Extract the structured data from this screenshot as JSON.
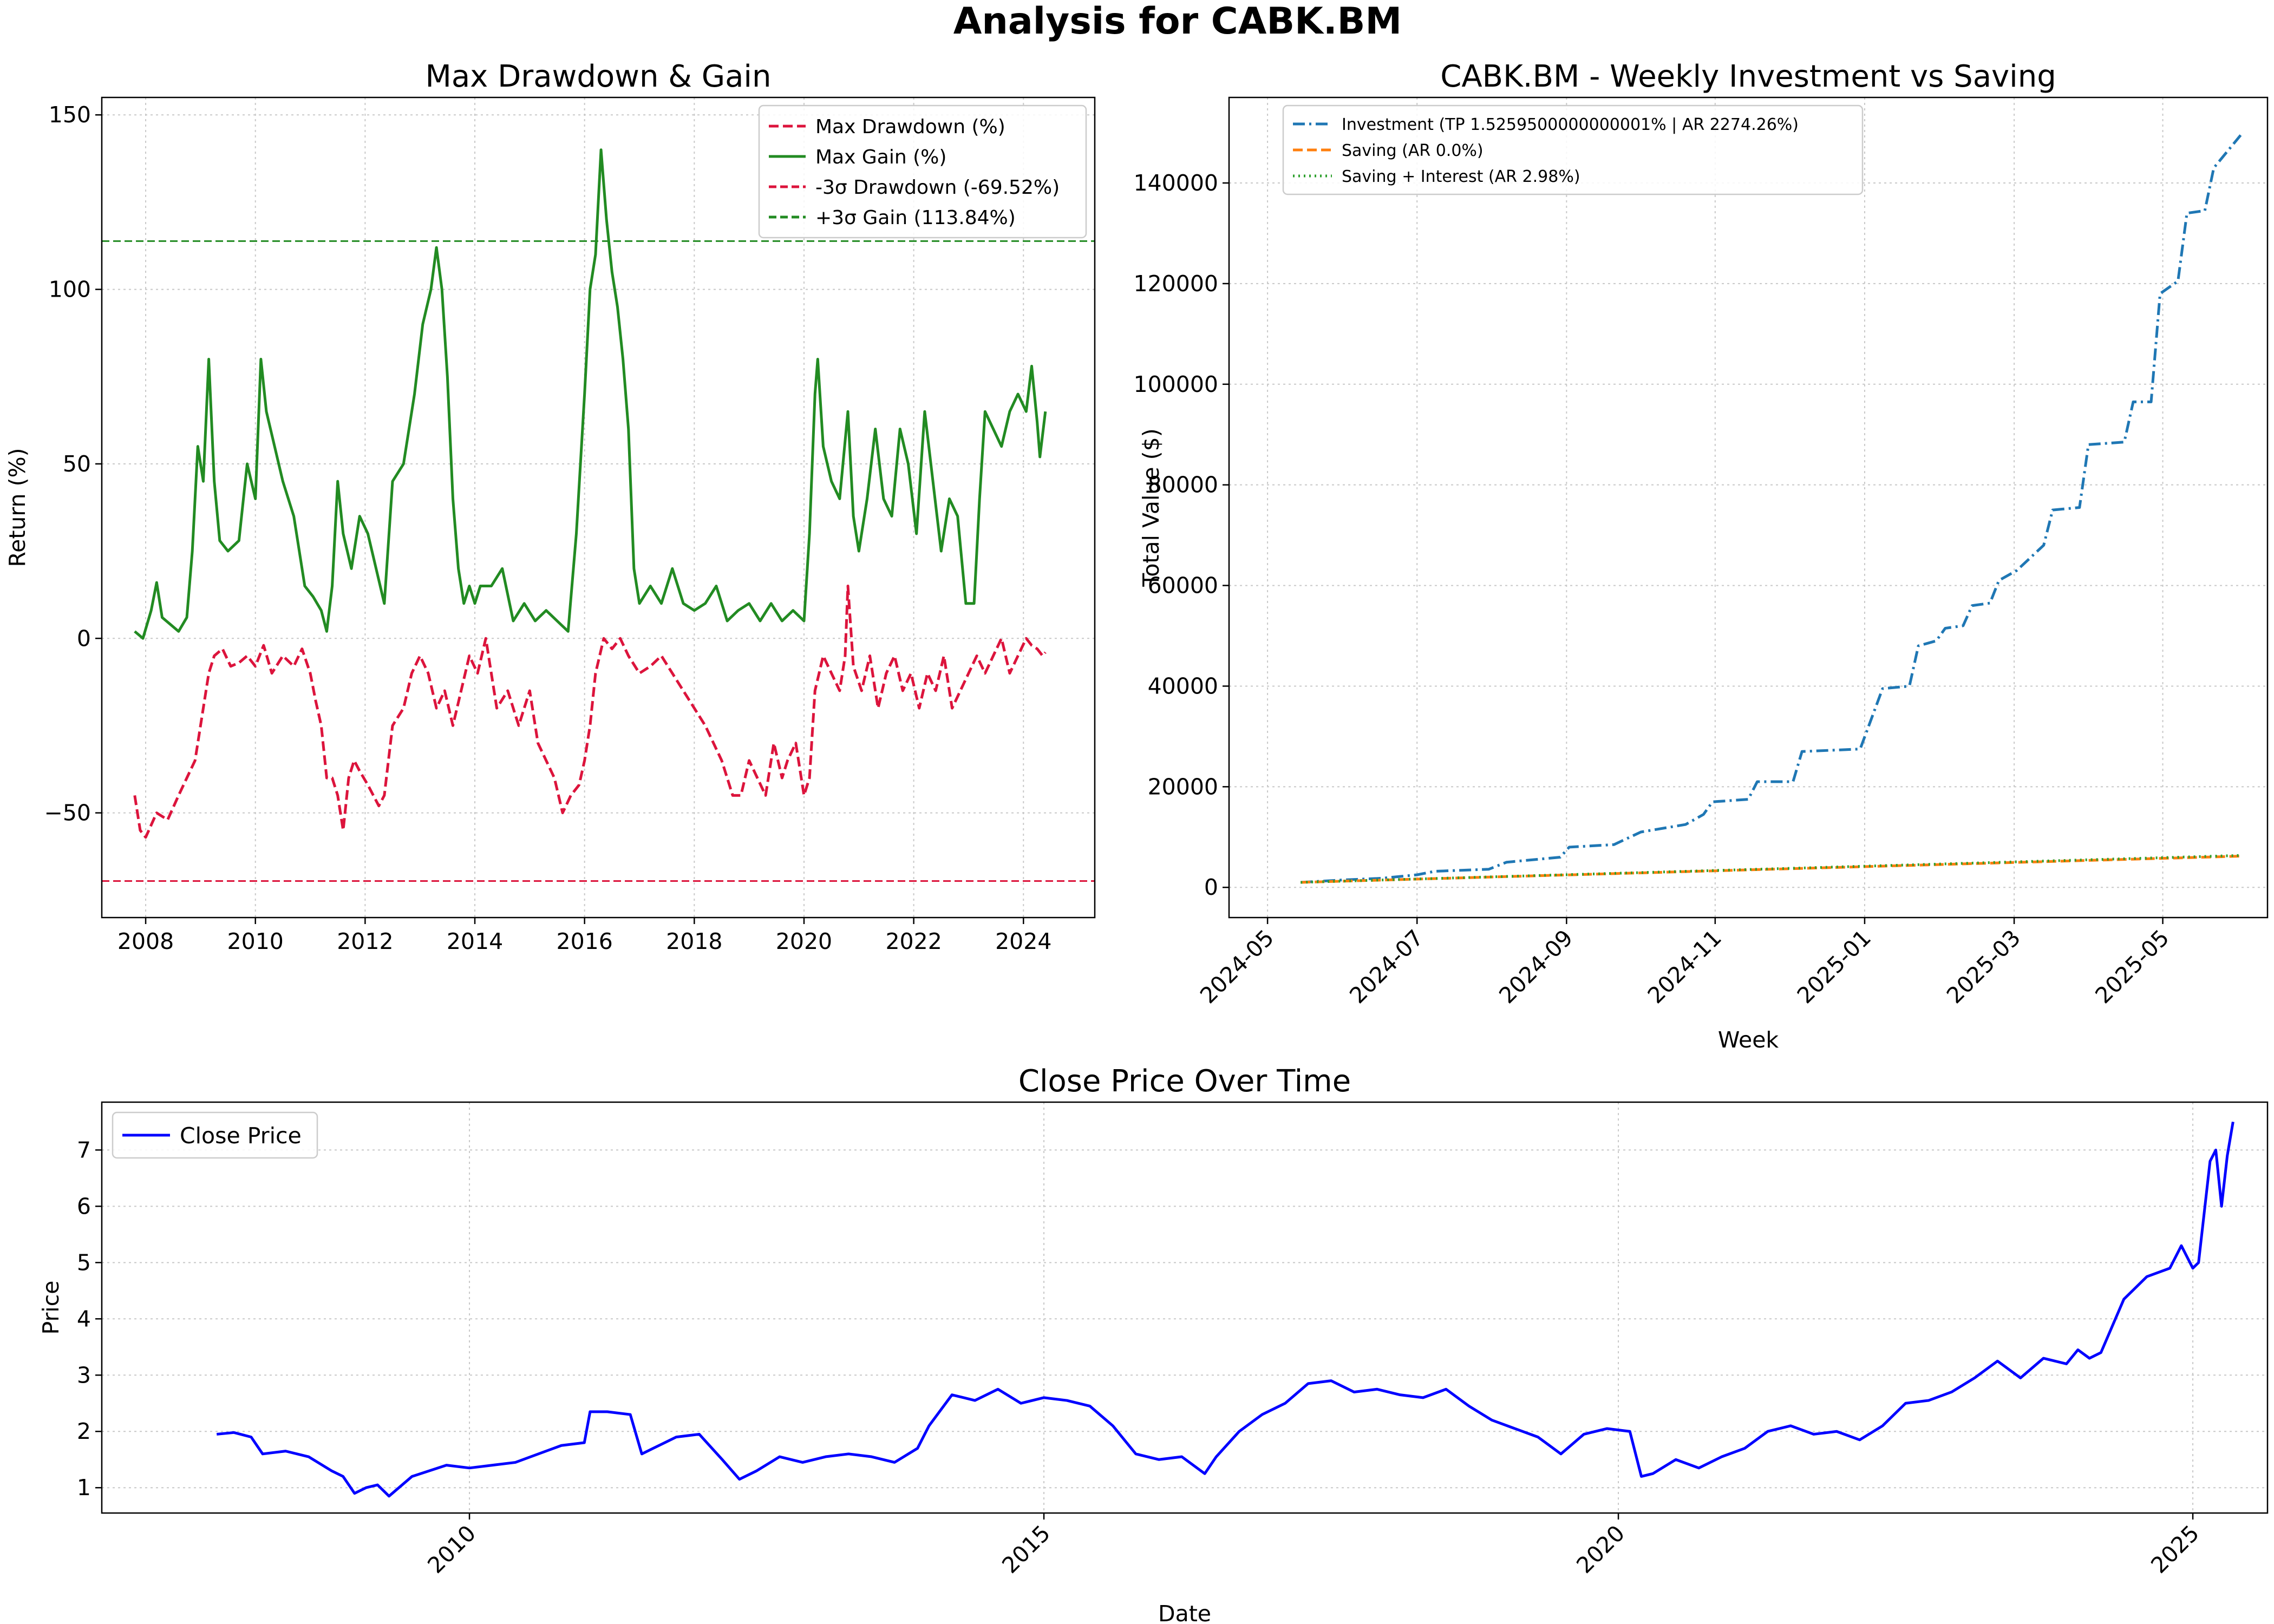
{
  "figure": {
    "title": "Analysis for CABK.BM"
  },
  "chart_data": [
    {
      "id": "drawdown",
      "type": "line",
      "title": "Max Drawdown & Gain",
      "xlabel": "",
      "ylabel": "Return (%)",
      "xlim": [
        2007.2,
        2025.3
      ],
      "ylim": [
        -80,
        155
      ],
      "xticks": [
        2008,
        2010,
        2012,
        2014,
        2016,
        2018,
        2020,
        2022,
        2024
      ],
      "yticks": [
        -50,
        0,
        50,
        100,
        150
      ],
      "grid": true,
      "legend": "top-right",
      "legend_items": [
        {
          "label": "Max Drawdown (%)",
          "color": "#dc143c",
          "style": "dashed"
        },
        {
          "label": "Max Gain (%)",
          "color": "#228b22",
          "style": "solid"
        },
        {
          "label": "-3σ Drawdown (-69.52%)",
          "color": "#dc143c",
          "style": "dashed-thin"
        },
        {
          "label": "+3σ Gain (113.84%)",
          "color": "#228b22",
          "style": "dashed-thin"
        }
      ],
      "hlines": [
        {
          "y": -69.52,
          "color": "#dc143c"
        },
        {
          "y": 113.84,
          "color": "#228b22"
        }
      ],
      "series": [
        {
          "name": "Max Gain (%)",
          "color": "#228b22",
          "style": "solid",
          "x": [
            2007.8,
            2007.95,
            2008.1,
            2008.2,
            2008.3,
            2008.45,
            2008.6,
            2008.75,
            2008.85,
            2008.95,
            2009.05,
            2009.15,
            2009.25,
            2009.35,
            2009.5,
            2009.7,
            2009.85,
            2010.0,
            2010.1,
            2010.2,
            2010.35,
            2010.5,
            2010.7,
            2010.9,
            2011.05,
            2011.2,
            2011.3,
            2011.4,
            2011.5,
            2011.6,
            2011.75,
            2011.9,
            2012.05,
            2012.2,
            2012.35,
            2012.5,
            2012.7,
            2012.9,
            2013.05,
            2013.2,
            2013.3,
            2013.4,
            2013.5,
            2013.6,
            2013.7,
            2013.8,
            2013.9,
            2014.0,
            2014.1,
            2014.3,
            2014.5,
            2014.7,
            2014.9,
            2015.1,
            2015.3,
            2015.5,
            2015.7,
            2015.85,
            2016.0,
            2016.1,
            2016.2,
            2016.3,
            2016.4,
            2016.5,
            2016.6,
            2016.7,
            2016.8,
            2016.9,
            2017.0,
            2017.2,
            2017.4,
            2017.6,
            2017.8,
            2018.0,
            2018.2,
            2018.4,
            2018.6,
            2018.8,
            2019.0,
            2019.2,
            2019.4,
            2019.6,
            2019.8,
            2020.0,
            2020.1,
            2020.2,
            2020.25,
            2020.35,
            2020.5,
            2020.65,
            2020.8,
            2020.9,
            2021.0,
            2021.15,
            2021.3,
            2021.45,
            2021.6,
            2021.75,
            2021.9,
            2022.05,
            2022.2,
            2022.35,
            2022.5,
            2022.65,
            2022.8,
            2022.95,
            2023.1,
            2023.2,
            2023.3,
            2023.45,
            2023.6,
            2023.75,
            2023.9,
            2024.05,
            2024.15,
            2024.25,
            2024.3,
            2024.4
          ],
          "y": [
            2,
            0,
            8,
            16,
            6,
            4,
            2,
            6,
            25,
            55,
            45,
            80,
            45,
            28,
            25,
            28,
            50,
            40,
            80,
            65,
            55,
            45,
            35,
            15,
            12,
            8,
            2,
            15,
            45,
            30,
            20,
            35,
            30,
            20,
            10,
            45,
            50,
            70,
            90,
            100,
            112,
            100,
            75,
            40,
            20,
            10,
            15,
            10,
            15,
            15,
            20,
            5,
            10,
            5,
            8,
            5,
            2,
            30,
            70,
            100,
            110,
            140,
            120,
            105,
            95,
            80,
            60,
            20,
            10,
            15,
            10,
            20,
            10,
            8,
            10,
            15,
            5,
            8,
            10,
            5,
            10,
            5,
            8,
            5,
            30,
            70,
            80,
            55,
            45,
            40,
            65,
            35,
            25,
            40,
            60,
            40,
            35,
            60,
            50,
            30,
            65,
            45,
            25,
            40,
            35,
            10,
            10,
            40,
            65,
            60,
            55,
            65,
            70,
            65,
            78,
            62,
            52,
            65
          ]
        },
        {
          "name": "Max Drawdown (%)",
          "color": "#dc143c",
          "style": "dashed",
          "x": [
            2007.8,
            2007.9,
            2008.0,
            2008.2,
            2008.4,
            2008.6,
            2008.75,
            2008.9,
            2009.05,
            2009.15,
            2009.25,
            2009.4,
            2009.55,
            2009.7,
            2009.85,
            2010.0,
            2010.15,
            2010.3,
            2010.5,
            2010.7,
            2010.85,
            2011.0,
            2011.1,
            2011.2,
            2011.3,
            2011.4,
            2011.5,
            2011.6,
            2011.7,
            2011.8,
            2011.9,
            2012.05,
            2012.15,
            2012.25,
            2012.35,
            2012.5,
            2012.7,
            2012.85,
            2013.0,
            2013.15,
            2013.3,
            2013.45,
            2013.6,
            2013.75,
            2013.9,
            2014.05,
            2014.2,
            2014.4,
            2014.6,
            2014.8,
            2015.0,
            2015.15,
            2015.3,
            2015.45,
            2015.6,
            2015.75,
            2015.9,
            2016.0,
            2016.1,
            2016.2,
            2016.35,
            2016.5,
            2016.65,
            2016.8,
            2017.0,
            2017.2,
            2017.4,
            2017.6,
            2017.8,
            2018.0,
            2018.2,
            2018.35,
            2018.5,
            2018.6,
            2018.7,
            2018.85,
            2019.0,
            2019.15,
            2019.3,
            2019.45,
            2019.6,
            2019.7,
            2019.85,
            2020.0,
            2020.1,
            2020.2,
            2020.35,
            2020.5,
            2020.65,
            2020.75,
            2020.8,
            2020.9,
            2021.05,
            2021.2,
            2021.35,
            2021.5,
            2021.65,
            2021.8,
            2021.95,
            2022.1,
            2022.25,
            2022.4,
            2022.55,
            2022.7,
            2022.85,
            2023.0,
            2023.15,
            2023.3,
            2023.45,
            2023.6,
            2023.75,
            2023.9,
            2024.05,
            2024.15,
            2024.25,
            2024.35,
            2024.4
          ],
          "y": [
            -45,
            -55,
            -57,
            -50,
            -52,
            -45,
            -40,
            -35,
            -20,
            -10,
            -5,
            -3,
            -8,
            -7,
            -5,
            -8,
            -2,
            -10,
            -5,
            -8,
            -3,
            -10,
            -18,
            -25,
            -40,
            -40,
            -45,
            -55,
            -40,
            -35,
            -38,
            -42,
            -45,
            -48,
            -45,
            -25,
            -20,
            -10,
            -5,
            -10,
            -20,
            -15,
            -25,
            -15,
            -5,
            -10,
            0,
            -20,
            -15,
            -25,
            -15,
            -30,
            -35,
            -40,
            -50,
            -45,
            -42,
            -35,
            -25,
            -10,
            0,
            -3,
            0,
            -5,
            -10,
            -8,
            -5,
            -10,
            -15,
            -20,
            -25,
            -30,
            -35,
            -40,
            -45,
            -45,
            -35,
            -40,
            -45,
            -30,
            -40,
            -35,
            -30,
            -45,
            -40,
            -15,
            -5,
            -10,
            -15,
            -5,
            15,
            -8,
            -15,
            -5,
            -20,
            -10,
            -5,
            -15,
            -10,
            -20,
            -10,
            -15,
            -5,
            -20,
            -15,
            -10,
            -5,
            -10,
            -5,
            0,
            -10,
            -5,
            0,
            -2,
            -3,
            -5,
            -4
          ]
        }
      ]
    },
    {
      "id": "investment",
      "type": "line",
      "title": "CABK.BM - Weekly Investment vs Saving",
      "xlabel": "Week",
      "ylabel": "Total Value ($)",
      "xlim": [
        2024.29,
        2025.45
      ],
      "ylim": [
        -6000,
        157000
      ],
      "xticks": [
        "2024-05",
        "2024-07",
        "2024-09",
        "2024-11",
        "2025-01",
        "2025-03",
        "2025-05"
      ],
      "xtick_values": [
        2024.333,
        2024.5,
        2024.667,
        2024.833,
        2025.0,
        2025.167,
        2025.333
      ],
      "yticks": [
        0,
        20000,
        40000,
        60000,
        80000,
        100000,
        120000,
        140000
      ],
      "grid": true,
      "legend": "top-left",
      "legend_items": [
        {
          "label": "Investment (TP 1.5259500000000001% | AR 2274.26%)",
          "color": "#1f77b4",
          "style": "dashdot"
        },
        {
          "label": "Saving (AR 0.0%)",
          "color": "#ff7f0e",
          "style": "dashed"
        },
        {
          "label": "Saving + Interest (AR 2.98%)",
          "color": "#2ca02c",
          "style": "dotted"
        }
      ],
      "series": [
        {
          "name": "Investment (TP 1.5259500000000001% | AR 2274.26%)",
          "color": "#1f77b4",
          "style": "dashdot",
          "x": [
            2024.37,
            2024.42,
            2024.46,
            2024.5,
            2024.52,
            2024.58,
            2024.6,
            2024.66,
            2024.67,
            2024.72,
            2024.75,
            2024.8,
            2024.82,
            2024.83,
            2024.87,
            2024.88,
            2024.92,
            2024.93,
            2024.995,
            2025.02,
            2025.05,
            2025.06,
            2025.08,
            2025.09,
            2025.11,
            2025.12,
            2025.14,
            2025.15,
            2025.17,
            2025.2,
            2025.21,
            2025.24,
            2025.25,
            2025.29,
            2025.3,
            2025.32,
            2025.33,
            2025.35,
            2025.36,
            2025.38,
            2025.39,
            2025.42
          ],
          "y": [
            1000,
            1500,
            1800,
            2500,
            3200,
            3600,
            5000,
            6000,
            8000,
            8500,
            11000,
            12500,
            14500,
            17000,
            17500,
            21000,
            21000,
            27000,
            27500,
            39500,
            40000,
            48000,
            49000,
            51500,
            52000,
            56000,
            56500,
            61000,
            63000,
            68000,
            75000,
            75500,
            88000,
            88500,
            96500,
            96500,
            118000,
            120500,
            134000,
            134500,
            143000,
            149500
          ]
        },
        {
          "name": "Saving (AR 0.0%)",
          "color": "#ff7f0e",
          "style": "dashed",
          "x": [
            2024.37,
            2025.42
          ],
          "y": [
            1000,
            6200
          ]
        },
        {
          "name": "Saving + Interest (AR 2.98%)",
          "color": "#2ca02c",
          "style": "dotted",
          "x": [
            2024.37,
            2025.42
          ],
          "y": [
            1000,
            6350
          ]
        }
      ]
    },
    {
      "id": "price",
      "type": "line",
      "title": "Close Price Over Time",
      "xlabel": "Date",
      "ylabel": "Price",
      "xlim": [
        2006.8,
        2025.65
      ],
      "ylim": [
        0.55,
        7.85
      ],
      "xticks": [
        2010,
        2015,
        2020,
        2025
      ],
      "yticks": [
        1,
        2,
        3,
        4,
        5,
        6,
        7
      ],
      "grid": true,
      "legend": "top-left",
      "legend_items": [
        {
          "label": "Close Price",
          "color": "#0000ff",
          "style": "solid"
        }
      ],
      "series": [
        {
          "name": "Close Price",
          "color": "#0000ff",
          "style": "solid",
          "x": [
            2007.8,
            2007.95,
            2008.1,
            2008.2,
            2008.4,
            2008.6,
            2008.8,
            2008.9,
            2009.0,
            2009.1,
            2009.2,
            2009.3,
            2009.5,
            2009.8,
            2010.0,
            2010.2,
            2010.4,
            2010.6,
            2010.8,
            2011.0,
            2011.05,
            2011.2,
            2011.4,
            2011.5,
            2011.6,
            2011.8,
            2012.0,
            2012.2,
            2012.35,
            2012.5,
            2012.7,
            2012.9,
            2013.1,
            2013.3,
            2013.5,
            2013.7,
            2013.9,
            2014.0,
            2014.2,
            2014.4,
            2014.6,
            2014.8,
            2015.0,
            2015.2,
            2015.4,
            2015.6,
            2015.8,
            2016.0,
            2016.2,
            2016.4,
            2016.5,
            2016.7,
            2016.9,
            2017.1,
            2017.3,
            2017.5,
            2017.7,
            2017.9,
            2018.1,
            2018.3,
            2018.5,
            2018.7,
            2018.9,
            2019.1,
            2019.3,
            2019.5,
            2019.7,
            2019.9,
            2020.1,
            2020.2,
            2020.3,
            2020.5,
            2020.7,
            2020.9,
            2021.1,
            2021.3,
            2021.5,
            2021.7,
            2021.9,
            2022.1,
            2022.3,
            2022.5,
            2022.7,
            2022.9,
            2023.1,
            2023.3,
            2023.5,
            2023.7,
            2023.9,
            2024.0,
            2024.1,
            2024.2,
            2024.4,
            2024.6,
            2024.8,
            2024.9,
            2025.0,
            2025.05,
            2025.1,
            2025.15,
            2025.2,
            2025.25,
            2025.3,
            2025.35
          ],
          "y": [
            1.95,
            1.98,
            1.9,
            1.6,
            1.65,
            1.55,
            1.3,
            1.2,
            0.9,
            1.0,
            1.05,
            0.85,
            1.2,
            1.4,
            1.35,
            1.4,
            1.45,
            1.6,
            1.75,
            1.8,
            2.35,
            2.35,
            2.3,
            1.6,
            1.7,
            1.9,
            1.95,
            1.5,
            1.15,
            1.3,
            1.55,
            1.45,
            1.55,
            1.6,
            1.55,
            1.45,
            1.7,
            2.1,
            2.65,
            2.55,
            2.75,
            2.5,
            2.6,
            2.55,
            2.45,
            2.1,
            1.6,
            1.5,
            1.55,
            1.25,
            1.55,
            2.0,
            2.3,
            2.5,
            2.85,
            2.9,
            2.7,
            2.75,
            2.65,
            2.6,
            2.75,
            2.45,
            2.2,
            2.05,
            1.9,
            1.6,
            1.95,
            2.05,
            2.0,
            1.2,
            1.25,
            1.5,
            1.35,
            1.55,
            1.7,
            2.0,
            2.1,
            1.95,
            2.0,
            1.85,
            2.1,
            2.5,
            2.55,
            2.7,
            2.95,
            3.25,
            2.95,
            3.3,
            3.2,
            3.45,
            3.3,
            3.4,
            4.35,
            4.75,
            4.9,
            5.3,
            4.9,
            5.0,
            5.9,
            6.8,
            7.0,
            6.0,
            6.9,
            7.5
          ]
        }
      ]
    }
  ]
}
